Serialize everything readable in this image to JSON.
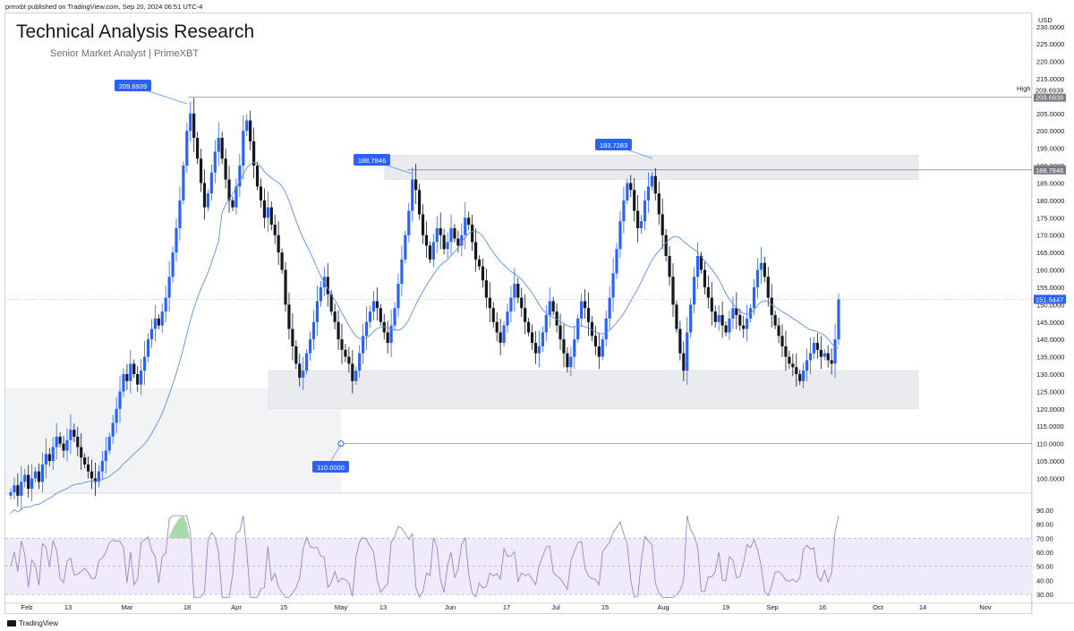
{
  "header": {
    "published": "prmxbt published on TradingView.com, Sep 20, 2024 06:51 UTC-4",
    "title": "Technical Analysis Research",
    "subtitle": "Senior Market Analyst | PrimeXBT"
  },
  "footer": {
    "brand": "TradingView"
  },
  "colors": {
    "up": "#2962ff",
    "down": "#131722",
    "ma": "#5b8ff0",
    "rsi": "#9575cd",
    "rsi_band": "#f0ebfa",
    "zone": "#eaebee",
    "label": "#2962ff"
  },
  "chart_data": {
    "type": "candlestick",
    "currency": "USD",
    "yticks": [
      "230.0000",
      "225.0000",
      "220.0000",
      "215.0000",
      "210.0000",
      "205.0000",
      "200.0000",
      "195.0000",
      "190.0000",
      "185.0000",
      "180.0000",
      "175.0000",
      "170.0000",
      "165.0000",
      "160.0000",
      "155.0000",
      "150.0000",
      "145.0000",
      "140.0000",
      "135.0000",
      "130.0000",
      "125.0000",
      "120.0000",
      "115.0000",
      "110.0000",
      "105.0000",
      "100.0000"
    ],
    "ylim": [
      96,
      232
    ],
    "xticks": [
      "Feb",
      "13",
      "Mar",
      "18",
      "Apr",
      "15",
      "May",
      "13",
      "Jun",
      "17",
      "Jul",
      "15",
      "Aug",
      "19",
      "Sep",
      "16",
      "Oct",
      "14",
      "Nov"
    ],
    "last_price": "151.5447",
    "high_label": "High",
    "high_value": "209.6939",
    "callouts": [
      "209.6939",
      "188.7846",
      "193.7283",
      "110.0000"
    ],
    "level_188": "188.7846",
    "closes": [
      96,
      98,
      95,
      99,
      101,
      97,
      100,
      102,
      99,
      104,
      107,
      105,
      109,
      112,
      110,
      108,
      111,
      114,
      112,
      109,
      106,
      104,
      102,
      100,
      99,
      102,
      105,
      108,
      112,
      116,
      120,
      125,
      130,
      128,
      133,
      130,
      127,
      131,
      135,
      140,
      143,
      146,
      144,
      148,
      152,
      158,
      165,
      172,
      180,
      190,
      200,
      205,
      198,
      192,
      185,
      178,
      182,
      188,
      194,
      198,
      192,
      186,
      180,
      178,
      184,
      190,
      200,
      203,
      197,
      190,
      184,
      180,
      175,
      178,
      173,
      170,
      165,
      160,
      150,
      143,
      138,
      133,
      129,
      131,
      136,
      140,
      145,
      151,
      155,
      158,
      153,
      148,
      145,
      140,
      137,
      135,
      133,
      128,
      131,
      136,
      141,
      145,
      148,
      151,
      149,
      145,
      142,
      139,
      144,
      149,
      156,
      163,
      170,
      177,
      186,
      183,
      176,
      170,
      167,
      163,
      168,
      172,
      170,
      166,
      168,
      172,
      169,
      167,
      170,
      175,
      173,
      168,
      163,
      161,
      157,
      152,
      149,
      145,
      142,
      139,
      144,
      148,
      152,
      156,
      152,
      149,
      145,
      142,
      139,
      136,
      138,
      142,
      147,
      151,
      148,
      144,
      140,
      136,
      132,
      135,
      140,
      146,
      151,
      149,
      145,
      141,
      138,
      135,
      140,
      146,
      152,
      159,
      166,
      174,
      180,
      185,
      183,
      177,
      172,
      174,
      180,
      184,
      187,
      182,
      176,
      170,
      164,
      158,
      150,
      143,
      136,
      131,
      142,
      150,
      158,
      164,
      160,
      155,
      152,
      148,
      145,
      147,
      144,
      142,
      146,
      149,
      147,
      144,
      143,
      146,
      149,
      155,
      160,
      162,
      158,
      152,
      147,
      144,
      141,
      138,
      135,
      133,
      132,
      130,
      128,
      131,
      134,
      136,
      139,
      137,
      135,
      136,
      134,
      133,
      140,
      151.5
    ],
    "rsi": {
      "ylim": [
        25,
        95
      ],
      "yticks": [
        "90.00",
        "80.00",
        "70.00",
        "60.00",
        "50.00",
        "40.00",
        "30.00"
      ],
      "upper": 70,
      "mid": 50,
      "lower": 30
    }
  }
}
